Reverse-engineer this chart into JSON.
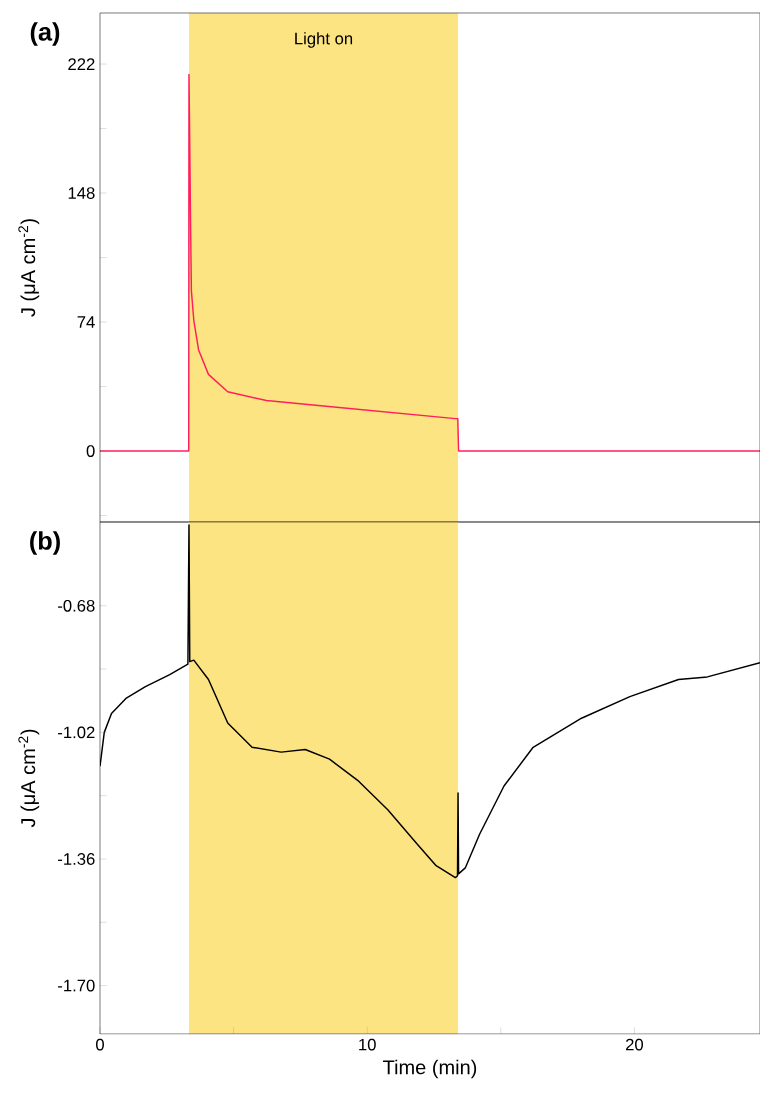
{
  "chart_data": [
    {
      "type": "line",
      "title": "(a)",
      "ylabel": "J (μA cm$^{-2}$)",
      "x": [
        0,
        1,
        2,
        3,
        3.32,
        3.33,
        3.36,
        3.39,
        3.42,
        3.51,
        3.69,
        4.06,
        4.78,
        6.23,
        8.95,
        13.3,
        13.39,
        13.42,
        15,
        20,
        24.7
      ],
      "series": [
        {
          "color": "#ff1f5b",
          "values": [
            0,
            0,
            0,
            0,
            0,
            216,
            175,
            130,
            92,
            75,
            58,
            44,
            34,
            29,
            25,
            18.6,
            18.6,
            0,
            0,
            0,
            0
          ]
        }
      ],
      "xlim": [
        0,
        24.7
      ],
      "ylim": [
        -40.7,
        251.3
      ],
      "yticks": [
        {
          "value": -37,
          "label": null
        },
        0,
        {
          "value": 37,
          "label": null
        },
        74,
        {
          "value": 111,
          "label": null
        },
        148,
        {
          "value": 185,
          "label": null
        },
        222
      ],
      "bands": [
        {
          "axis": "x",
          "from": 3.33,
          "to": 13.4,
          "label": "Light on",
          "color": "#fde482"
        }
      ],
      "tick_labels": "y"
    },
    {
      "type": "line",
      "title": "(b)",
      "xlabel": "Time (min)",
      "ylabel": "J (μA cm$^{-2}$)",
      "x": [
        0,
        0.16,
        0.43,
        0.97,
        1.7,
        2.61,
        3.29,
        3.33,
        3.36,
        3.51,
        4.06,
        4.78,
        5.69,
        6.78,
        7.68,
        8.59,
        9.68,
        10.77,
        11.86,
        12.58,
        13.3,
        13.38,
        13.4,
        13.42,
        13.67,
        14.21,
        15.12,
        16.21,
        18.02,
        19.83,
        21.65,
        22.73,
        24.7
      ],
      "series": [
        {
          "color": "#000000",
          "values": [
            -1.111,
            -1.02,
            -0.969,
            -0.929,
            -0.897,
            -0.865,
            -0.837,
            -0.463,
            -0.83,
            -0.826,
            -0.878,
            -0.995,
            -1.06,
            -1.073,
            -1.066,
            -1.092,
            -1.151,
            -1.228,
            -1.319,
            -1.378,
            -1.41,
            -1.405,
            -1.183,
            -1.4,
            -1.384,
            -1.293,
            -1.164,
            -1.06,
            -0.982,
            -0.924,
            -0.878,
            -0.871,
            -0.833
          ]
        }
      ],
      "xlim": [
        0,
        24.7
      ],
      "xticks": [
        0,
        {
          "value": 5,
          "label": null
        },
        10,
        {
          "value": 15,
          "label": null
        },
        20
      ],
      "ylim": [
        -1.83,
        -0.455
      ],
      "yticks": [
        {
          "value": -1.7,
          "label": "-1.70"
        },
        {
          "value": -1.53,
          "label": null
        },
        -1.36,
        {
          "value": -1.19,
          "label": null
        },
        -1.02,
        {
          "value": -0.85,
          "label": null
        },
        -0.68
      ],
      "bands": [
        {
          "axis": "x",
          "from": 3.33,
          "to": 13.4,
          "color": "#fde482"
        }
      ]
    }
  ]
}
